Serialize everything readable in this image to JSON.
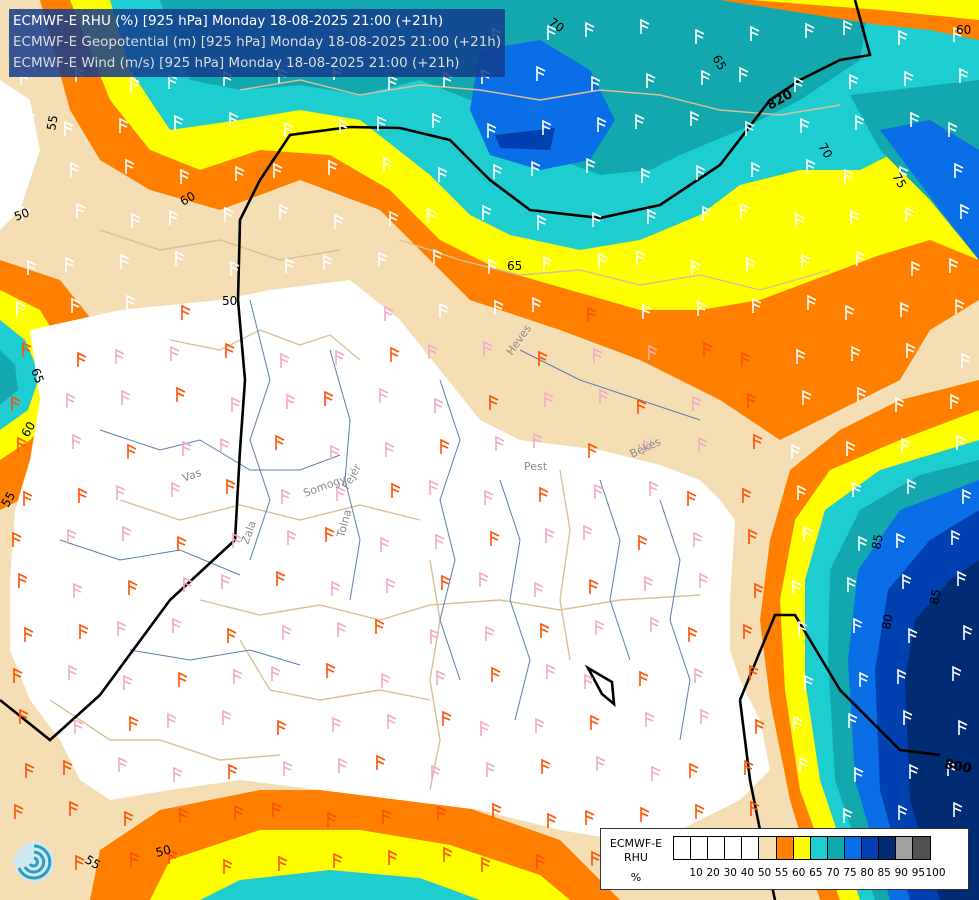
{
  "header": {
    "line1": "ECMWF-E RHU (%) [925 hPa] Monday 18-08-2025 21:00 (+21h)",
    "line2": "ECMWF-E Geopotential (m) [925 hPa] Monday 18-08-2025 21:00 (+21h)",
    "line3": "ECMWF-E Wind (m/s) [925 hPa] Monday 18-08-2025 21:00 (+21h)"
  },
  "legend": {
    "title_line1": "ECMWF-E",
    "title_line2": "RHU",
    "unit": "%",
    "classes": [
      {
        "label": "10",
        "color": "#ffffff"
      },
      {
        "label": "20",
        "color": "#ffffff"
      },
      {
        "label": "30",
        "color": "#ffffff"
      },
      {
        "label": "40",
        "color": "#ffffff"
      },
      {
        "label": "50",
        "color": "#ffffff"
      },
      {
        "label": "55",
        "color": "#f5deb3"
      },
      {
        "label": "60",
        "color": "#ff8000"
      },
      {
        "label": "65",
        "color": "#ffff00"
      },
      {
        "label": "70",
        "color": "#1ecdd0"
      },
      {
        "label": "75",
        "color": "#13a8ad"
      },
      {
        "label": "80",
        "color": "#0a6ee6"
      },
      {
        "label": "85",
        "color": "#0040b0"
      },
      {
        "label": "90",
        "color": "#002c73"
      },
      {
        "label": "95",
        "color": "#a0a0a0"
      },
      {
        "label": "100",
        "color": "#505050"
      }
    ]
  },
  "contour_labels": {
    "rhu": [
      "70",
      "65",
      "60",
      "55",
      "50",
      "60",
      "65",
      "70",
      "75",
      "50",
      "65",
      "60",
      "55",
      "55",
      "50",
      "85",
      "80",
      "85"
    ],
    "geopotential": [
      "820",
      "800"
    ]
  },
  "region_labels": [
    "Heves",
    "Pest",
    "Békés",
    "Vas",
    "Zala",
    "Somogy",
    "Fejér",
    "Tolna"
  ],
  "colors": {
    "white": "#ffffff",
    "tan": "#f5deb3",
    "orange": "#ff8000",
    "yellow": "#ffff00",
    "cyan": "#1ecdd0",
    "teal": "#13a8ad",
    "blue": "#0a6ee6",
    "darkblue": "#0040b0",
    "navy": "#002c73",
    "geopotential_line": "#000000",
    "border_line": "#d9c09a",
    "river_line": "#5a7fb0",
    "wind_barb": "#ff5000"
  }
}
